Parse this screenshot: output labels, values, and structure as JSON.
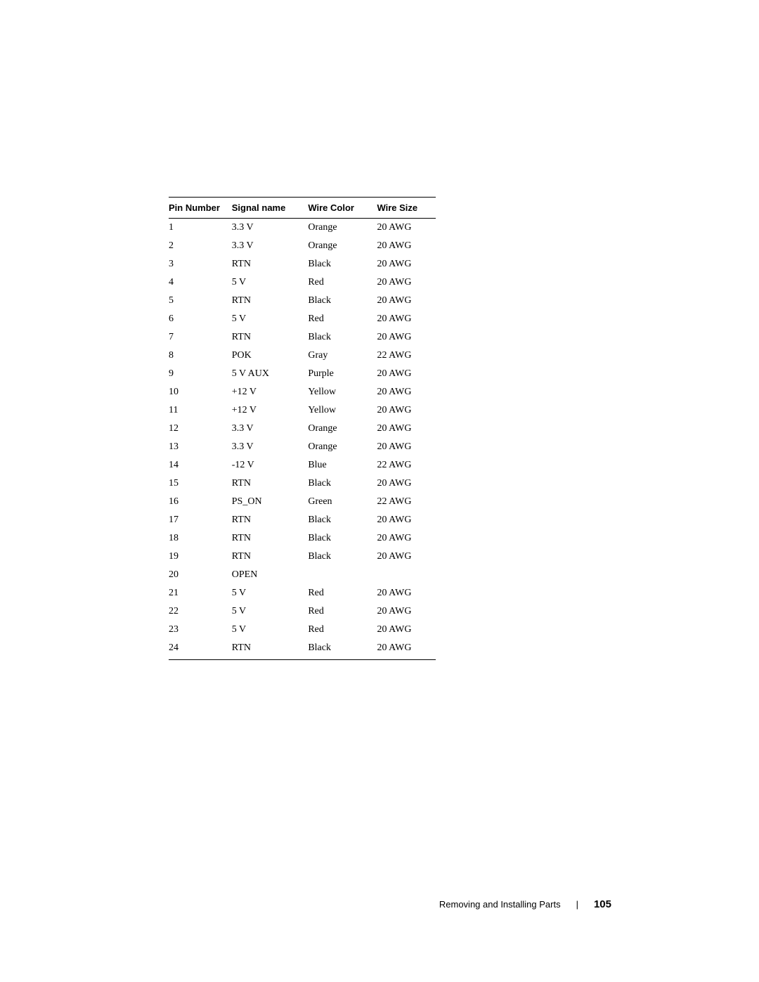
{
  "table": {
    "columns": [
      "Pin Number",
      "Signal name",
      "Wire Color",
      "Wire Size"
    ],
    "rows": [
      [
        "1",
        "3.3 V",
        "Orange",
        "20 AWG"
      ],
      [
        "2",
        "3.3 V",
        "Orange",
        "20 AWG"
      ],
      [
        "3",
        "RTN",
        "Black",
        "20 AWG"
      ],
      [
        "4",
        "5 V",
        "Red",
        "20 AWG"
      ],
      [
        "5",
        "RTN",
        "Black",
        "20 AWG"
      ],
      [
        "6",
        "5 V",
        "Red",
        "20 AWG"
      ],
      [
        "7",
        "RTN",
        "Black",
        "20 AWG"
      ],
      [
        "8",
        "POK",
        "Gray",
        "22 AWG"
      ],
      [
        "9",
        "5 V AUX",
        "Purple",
        "20 AWG"
      ],
      [
        "10",
        "+12 V",
        "Yellow",
        "20 AWG"
      ],
      [
        "11",
        "+12 V",
        "Yellow",
        "20 AWG"
      ],
      [
        "12",
        "3.3 V",
        "Orange",
        "20 AWG"
      ],
      [
        "13",
        "3.3 V",
        "Orange",
        "20 AWG"
      ],
      [
        "14",
        "-12 V",
        "Blue",
        "22 AWG"
      ],
      [
        "15",
        "RTN",
        "Black",
        "20 AWG"
      ],
      [
        "16",
        "PS_ON",
        "Green",
        "22 AWG"
      ],
      [
        "17",
        "RTN",
        "Black",
        "20 AWG"
      ],
      [
        "18",
        "RTN",
        "Black",
        "20 AWG"
      ],
      [
        "19",
        "RTN",
        "Black",
        "20 AWG"
      ],
      [
        "20",
        "OPEN",
        "",
        ""
      ],
      [
        "21",
        "5 V",
        "Red",
        "20 AWG"
      ],
      [
        "22",
        "5 V",
        "Red",
        "20 AWG"
      ],
      [
        "23",
        "5 V",
        "Red",
        "20 AWG"
      ],
      [
        "24",
        "RTN",
        "Black",
        "20 AWG"
      ]
    ]
  },
  "footer": {
    "section": "Removing and Installing Parts",
    "divider": "|",
    "page_number": "105"
  }
}
